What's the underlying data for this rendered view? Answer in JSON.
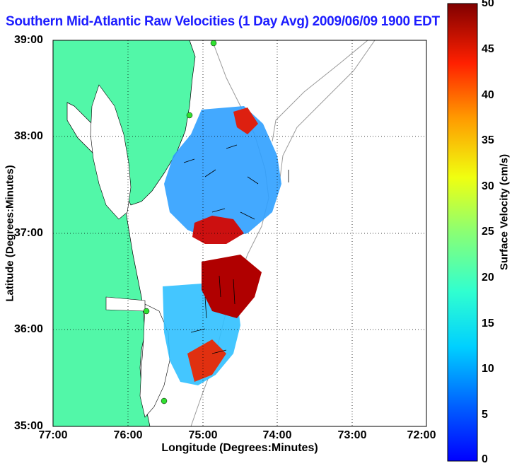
{
  "title": "Southern Mid-Atlantic Raw Velocities (1 Day Avg) 2009/06/09 1900 EDT",
  "xlabel": "Longitude (Degrees:Minutes)",
  "ylabel": "Latitude (Degrees:Minutes)",
  "x_ticks": [
    "77:00",
    "76:00",
    "75:00",
    "74:00",
    "73:00",
    "72:00"
  ],
  "y_ticks": [
    "39:00",
    "38:00",
    "37:00",
    "36:00",
    "35:00"
  ],
  "colorbar": {
    "label": "Surface Velocity (cm/s)",
    "ticks": [
      "50",
      "45",
      "40",
      "35",
      "30",
      "25",
      "20",
      "15",
      "10",
      "5",
      "0"
    ],
    "range": [
      0,
      50
    ],
    "colormap": "jet"
  },
  "colors": {
    "land": "#52f7a8",
    "water": "#ffffff",
    "bathymetry": "#9a9a9a",
    "title": "#1c1cff"
  },
  "map": {
    "lon_range": [
      -77,
      -72
    ],
    "lat_range": [
      35,
      39
    ],
    "grid": "dotted",
    "stations": [
      "radar-site-1",
      "radar-site-2",
      "radar-site-3",
      "radar-site-4"
    ]
  }
}
